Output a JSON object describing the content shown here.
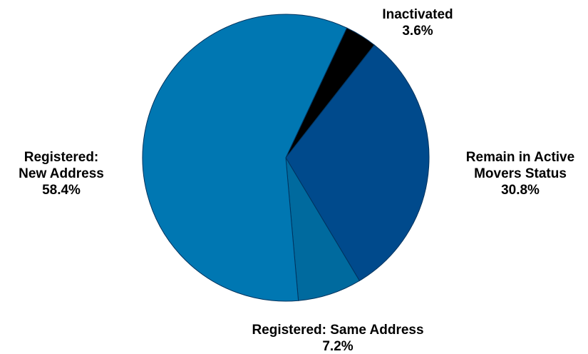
{
  "chart_data": {
    "type": "pie",
    "title": "",
    "slices": [
      {
        "name": "Inactivated",
        "value": 3.6,
        "value_label": "3.6%",
        "label_lines": [
          "Inactivated"
        ],
        "color": "#000000"
      },
      {
        "name": "Remain in Active Movers Status",
        "value": 30.8,
        "value_label": "30.8%",
        "label_lines": [
          "Remain in Active",
          "Movers Status"
        ],
        "color": "#004a8c"
      },
      {
        "name": "Registered: Same Address",
        "value": 7.2,
        "value_label": "7.2%",
        "label_lines": [
          "Registered: Same Address"
        ],
        "color": "#006a9e"
      },
      {
        "name": "Registered: New Address",
        "value": 58.4,
        "value_label": "58.4%",
        "label_lines": [
          "Registered:",
          "New Address"
        ],
        "color": "#0077b2"
      }
    ],
    "start_angle_deg": 64.8,
    "direction": "clockwise",
    "slice_border_color": "#00335e"
  }
}
